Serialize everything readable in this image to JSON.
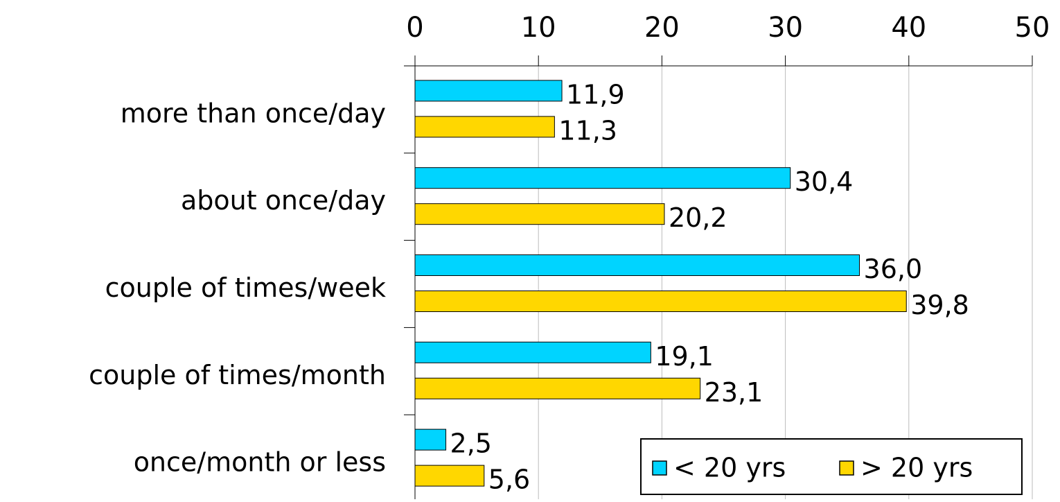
{
  "chart_data": {
    "type": "hbar",
    "categories": [
      "more than once/day",
      "about once/day",
      "couple of times/week",
      "couple of times/month",
      "once/month or less"
    ],
    "series": [
      {
        "name": "< 20 yrs",
        "color": "#00d4ff",
        "values": [
          11.9,
          30.4,
          36.0,
          19.1,
          2.5
        ],
        "value_labels": [
          "11,9",
          "30,4",
          "36,0",
          "19,1",
          "2,5"
        ]
      },
      {
        "name": "> 20 yrs",
        "color": "#ffd700",
        "values": [
          11.3,
          20.2,
          39.8,
          23.1,
          5.6
        ],
        "value_labels": [
          "11,3",
          "20,2",
          "39,8",
          "23,1",
          "5,6"
        ]
      }
    ],
    "xlim": [
      0,
      50
    ],
    "xticks": [
      0,
      10,
      20,
      30,
      40,
      50
    ],
    "grid": true,
    "legend": "lower right"
  }
}
